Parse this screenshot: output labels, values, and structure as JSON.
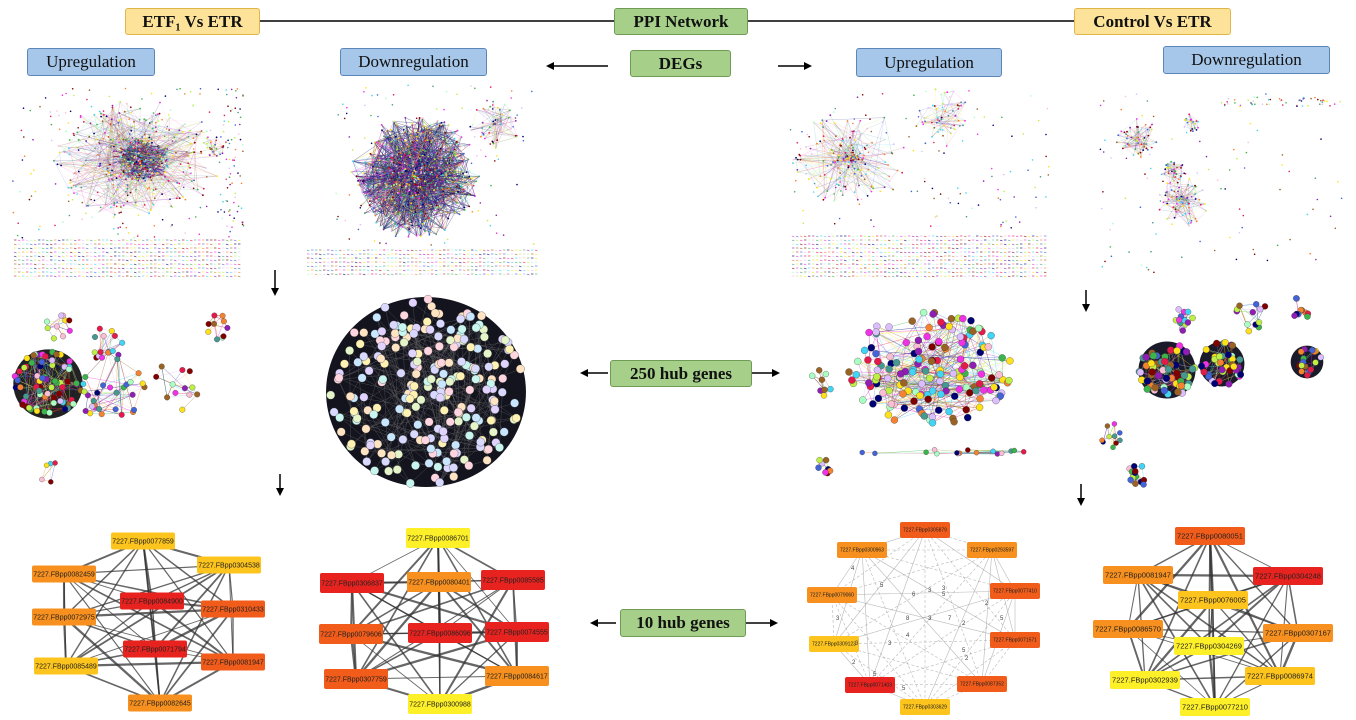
{
  "header": {
    "left_title": "ETF₁ Vs ETR",
    "center_title": "PPI Network",
    "right_title": "Control Vs ETR"
  },
  "labels": {
    "up": "Upregulation",
    "down": "Downregulation",
    "degs": "DEGs",
    "hub250": "250 hub genes",
    "hub10": "10 hub genes"
  },
  "colors": {
    "red": "#e8231f",
    "orange_red": "#f25c1b",
    "orange": "#f7901e",
    "gold": "#fcc41c",
    "yellow": "#fef028"
  },
  "hubs": {
    "g1": [
      {
        "label": "7227.FBpp0077859",
        "color": "gold"
      },
      {
        "label": "7227.FBpp0304538",
        "color": "gold"
      },
      {
        "label": "7227.FBpp0082459",
        "color": "orange"
      },
      {
        "label": "7227.FBpp0084900",
        "color": "red"
      },
      {
        "label": "7227.FBpp0310433",
        "color": "orange_red"
      },
      {
        "label": "7227.FBpp0072975",
        "color": "orange"
      },
      {
        "label": "7227.FBpp0071794",
        "color": "red"
      },
      {
        "label": "7227.FBpp0081947",
        "color": "orange_red"
      },
      {
        "label": "7227.FBpp0085489",
        "color": "gold"
      },
      {
        "label": "7227.FBpp0082645",
        "color": "orange"
      }
    ],
    "g2": [
      {
        "label": "7227.FBpp0086701",
        "color": "yellow"
      },
      {
        "label": "7227.FBpp0306837",
        "color": "red"
      },
      {
        "label": "7227.FBpp0080401",
        "color": "orange"
      },
      {
        "label": "7227.FBpp0085585",
        "color": "red"
      },
      {
        "label": "7227.FBpp0079606",
        "color": "orange_red"
      },
      {
        "label": "7227.FBpp0086096",
        "color": "red"
      },
      {
        "label": "7227.FBpp0074555",
        "color": "red"
      },
      {
        "label": "7227.FBpp0307759",
        "color": "orange_red"
      },
      {
        "label": "7227.FBpp0084617",
        "color": "orange"
      },
      {
        "label": "7227.FBpp0300988",
        "color": "yellow"
      }
    ],
    "g3": [
      {
        "label": "7227.FBpp0305879",
        "color": "orange_red"
      },
      {
        "label": "7227.FBpp0300963",
        "color": "orange"
      },
      {
        "label": "7227.FBpp0293597",
        "color": "orange"
      },
      {
        "label": "7227.FBpp0079060",
        "color": "orange"
      },
      {
        "label": "7227.FBpp0077410",
        "color": "orange_red"
      },
      {
        "label": "7227.FBpp0309123",
        "color": "gold"
      },
      {
        "label": "7227.FBpp0071571",
        "color": "orange_red"
      },
      {
        "label": "7227.FBpp0071403",
        "color": "red"
      },
      {
        "label": "7227.FBpp0087352",
        "color": "orange_red"
      },
      {
        "label": "7227.FBpp0303629",
        "color": "gold"
      }
    ],
    "g4": [
      {
        "label": "7227.FBpp0080051",
        "color": "orange_red"
      },
      {
        "label": "7227.FBpp0081947",
        "color": "orange"
      },
      {
        "label": "7227.FBpp0304248",
        "color": "red"
      },
      {
        "label": "7227.FBpp0076005",
        "color": "gold"
      },
      {
        "label": "7227.FBpp0086570",
        "color": "orange"
      },
      {
        "label": "7227.FBpp0307167",
        "color": "orange"
      },
      {
        "label": "7227.FBpp0304269",
        "color": "yellow"
      },
      {
        "label": "7227.FBpp0302939",
        "color": "yellow"
      },
      {
        "label": "7227.FBpp0086974",
        "color": "gold"
      },
      {
        "label": "7227.FBpp0077210",
        "color": "yellow"
      }
    ]
  },
  "edge_weights_g3": [
    "4",
    "5",
    "3",
    "6",
    "3",
    "5",
    "8",
    "3",
    "3",
    "4",
    "3",
    "2",
    "5",
    "2",
    "7",
    "2",
    "5",
    "2",
    "5",
    "3",
    "5"
  ]
}
